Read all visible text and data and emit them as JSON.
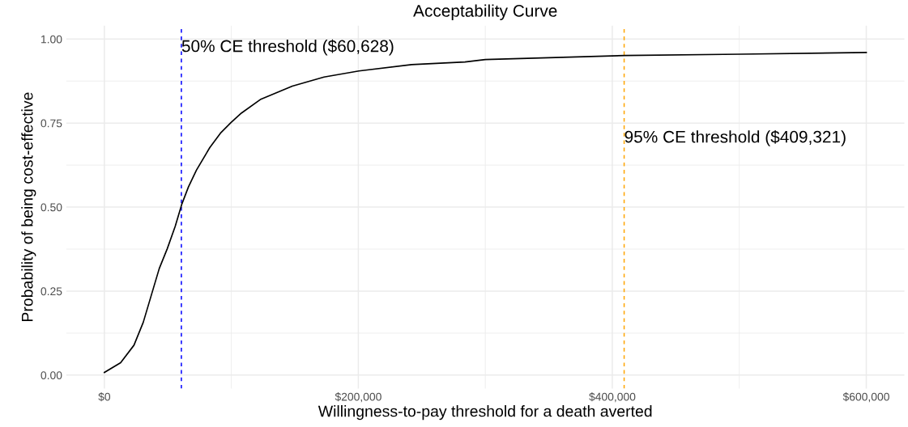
{
  "chart_data": {
    "type": "line",
    "title": "Acceptability Curve",
    "xlabel": "Willingness-to-pay threshold for a death averted",
    "ylabel": "Probability of being cost-effective",
    "x": [
      0,
      12800,
      23300,
      30600,
      36900,
      43200,
      49500,
      55800,
      61000,
      66200,
      72500,
      83000,
      91400,
      99800,
      108000,
      122800,
      148000,
      173000,
      200400,
      242000,
      284000,
      300000,
      410000,
      501000,
      600000
    ],
    "series": [
      {
        "color": "#000000",
        "values": [
          0.008,
          0.037,
          0.089,
          0.157,
          0.237,
          0.317,
          0.376,
          0.443,
          0.509,
          0.56,
          0.61,
          0.677,
          0.72,
          0.752,
          0.78,
          0.82,
          0.86,
          0.887,
          0.905,
          0.924,
          0.932,
          0.939,
          0.951,
          0.955,
          0.96
        ]
      }
    ],
    "xlim": [
      -30000,
      630000
    ],
    "xticks": [
      {
        "value": 0,
        "label": "$0"
      },
      {
        "value": 200000,
        "label": "$200,000"
      },
      {
        "value": 400000,
        "label": "$400,000"
      },
      {
        "value": 600000,
        "label": "$600,000"
      }
    ],
    "ylim": [
      -0.04,
      1.04
    ],
    "yticks": [
      {
        "value": 0,
        "label": "0.00"
      },
      {
        "value": 0.25,
        "label": "0.25"
      },
      {
        "value": 0.5,
        "label": "0.50"
      },
      {
        "value": 0.75,
        "label": "0.75"
      },
      {
        "value": 1,
        "label": "1.00"
      }
    ],
    "ref_lines": [
      {
        "axis": "x",
        "value": 60628,
        "label": "50% CE threshold ($60,628)",
        "color": "#0000ff",
        "line_style": "dashed"
      },
      {
        "axis": "x",
        "value": 409321,
        "label": "95% CE threshold ($409,321)",
        "color": "#ffa500",
        "line_style": "dashed"
      }
    ],
    "grid": true,
    "line_style": "solid",
    "marker": "none"
  }
}
